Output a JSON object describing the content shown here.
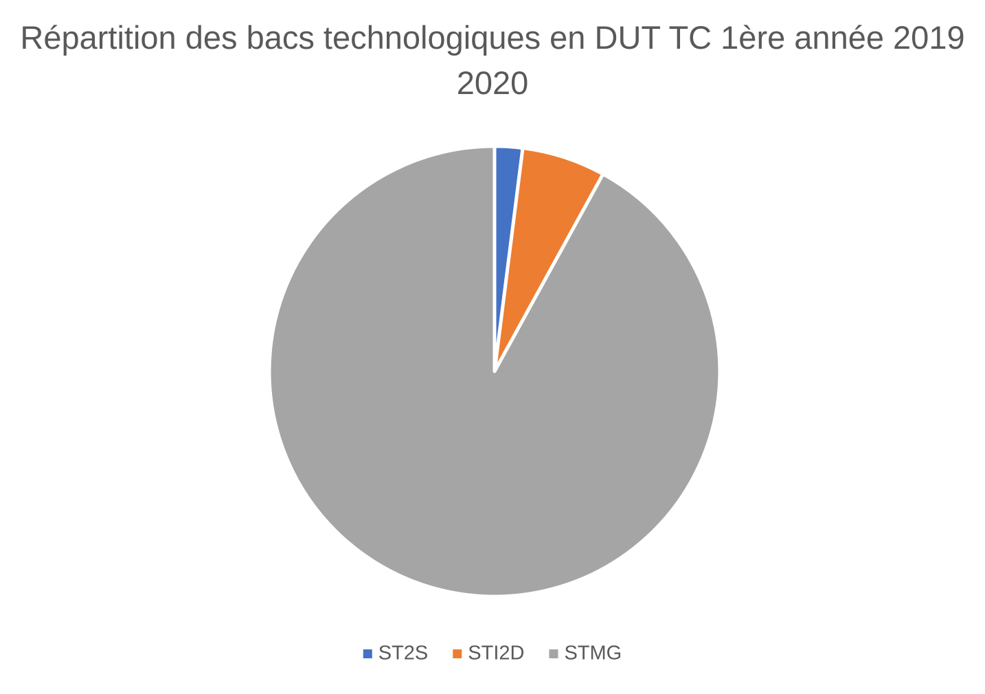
{
  "chart_data": {
    "type": "pie",
    "title": "Répartition des bacs technologiques en DUT TC 1ère année 2019 2020",
    "categories": [
      "ST2S",
      "STI2D",
      "STMG"
    ],
    "values": [
      2,
      6,
      92
    ],
    "colors": [
      "#4472c4",
      "#ed7d31",
      "#a5a5a5"
    ],
    "legend": "bottom"
  }
}
